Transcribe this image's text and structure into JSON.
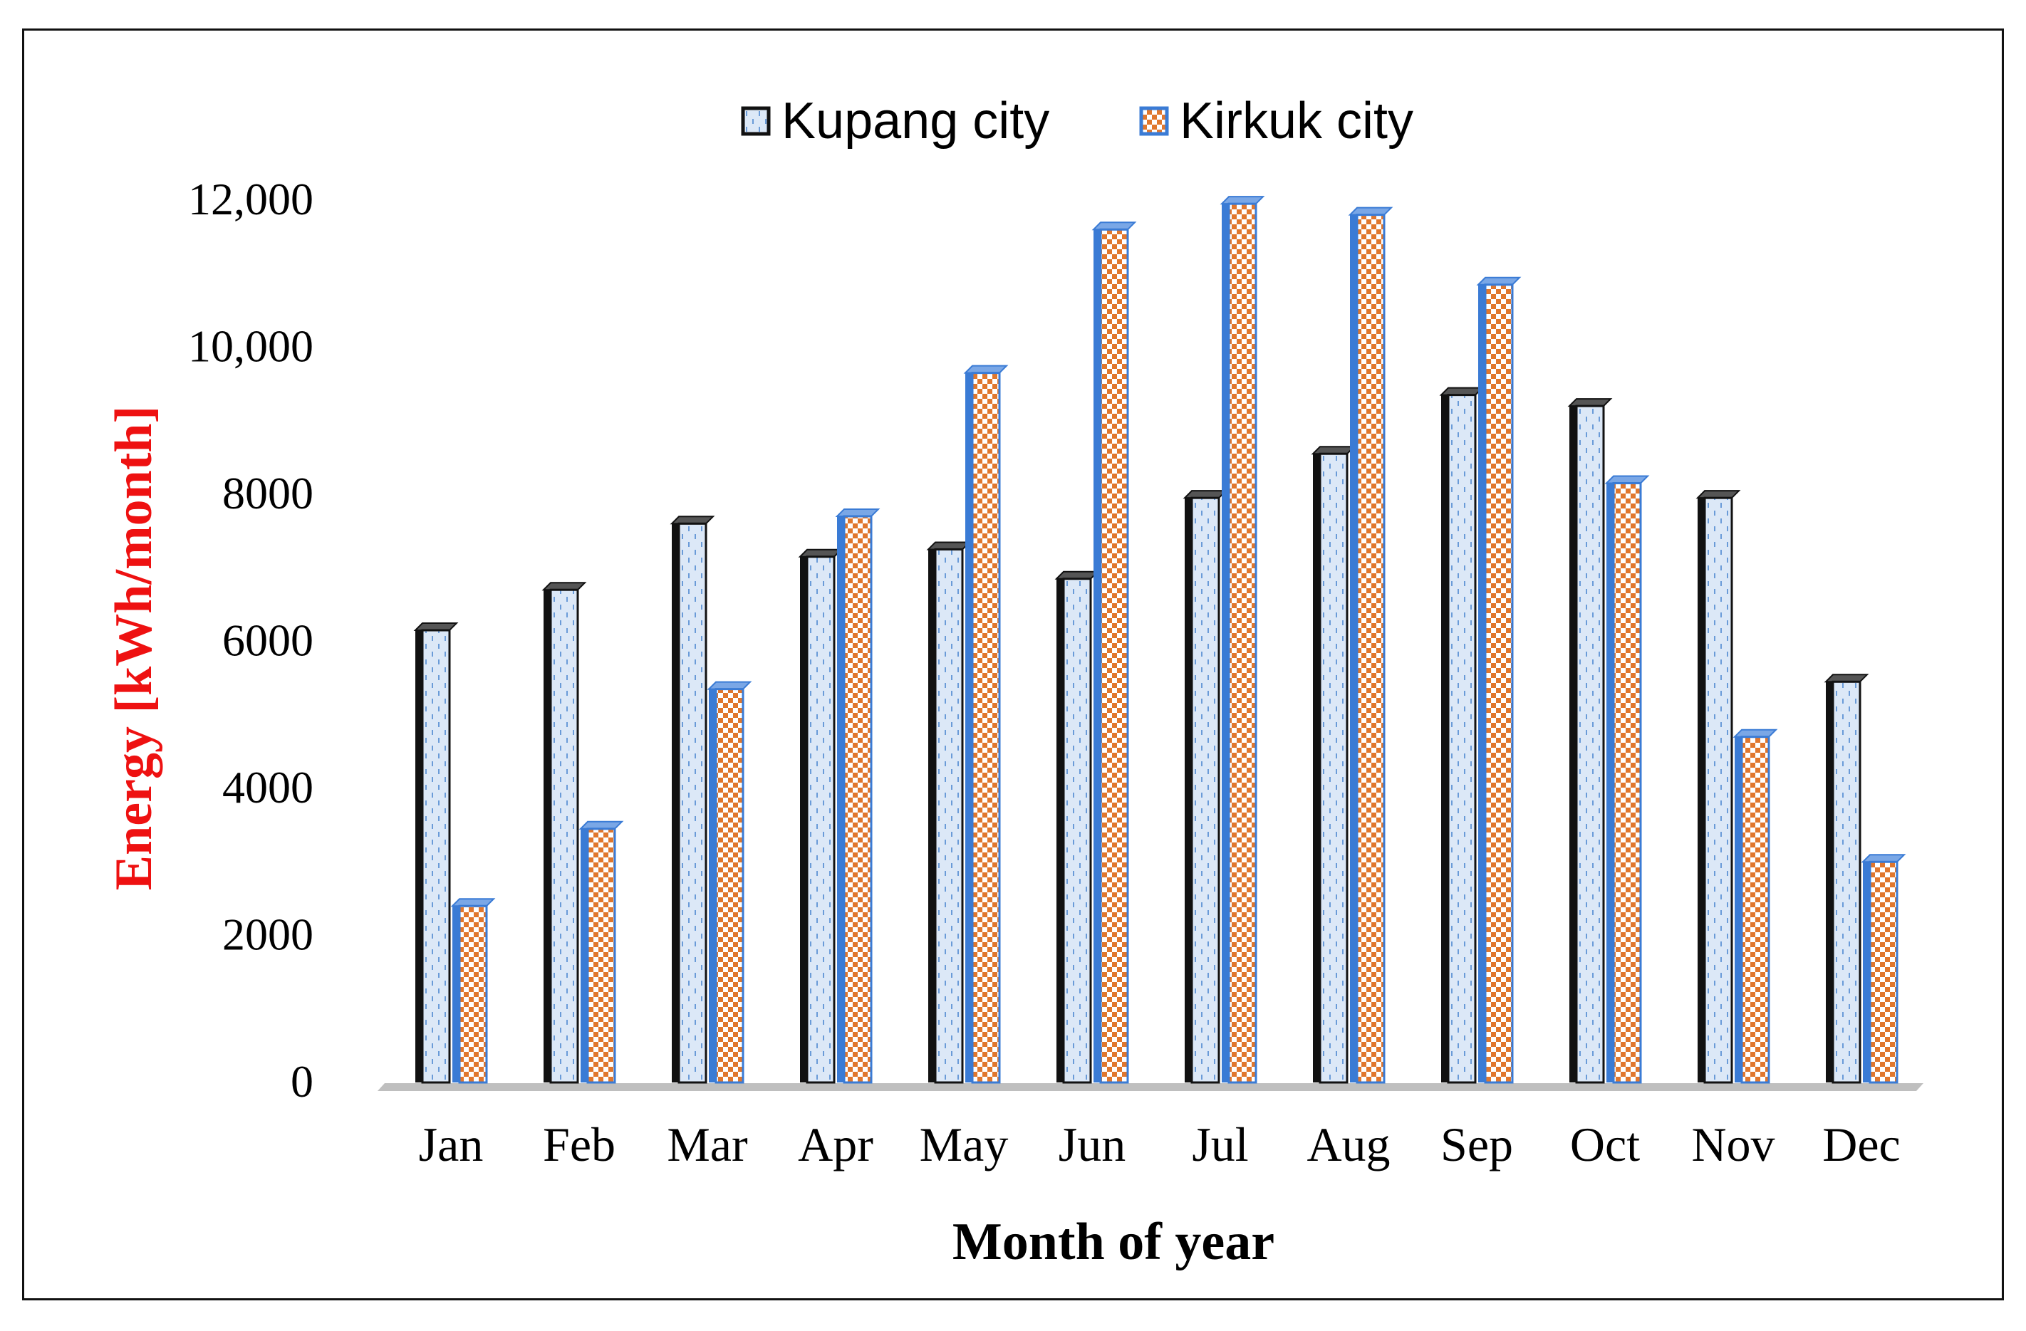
{
  "chart_data": {
    "type": "bar",
    "title": "",
    "xlabel": "Month of year",
    "ylabel": "Energy  [kWh/month]",
    "ylim": [
      0,
      12000
    ],
    "grid": false,
    "legend_position": "top-center",
    "categories": [
      "Jan",
      "Feb",
      "Mar",
      "Apr",
      "May",
      "Jun",
      "Jul",
      "Aug",
      "Sep",
      "Oct",
      "Nov",
      "Dec"
    ],
    "y_ticks": [
      {
        "value": 0,
        "label": "0"
      },
      {
        "value": 2000,
        "label": "2000"
      },
      {
        "value": 4000,
        "label": "4000"
      },
      {
        "value": 6000,
        "label": "6000"
      },
      {
        "value": 8000,
        "label": "8000"
      },
      {
        "value": 10000,
        "label": "10,000"
      },
      {
        "value": 12000,
        "label": "12,000"
      }
    ],
    "series": [
      {
        "name": "Kupang city",
        "values": [
          6150,
          6700,
          7600,
          7150,
          7250,
          6850,
          7950,
          8550,
          9350,
          9200,
          7950,
          5450
        ]
      },
      {
        "name": "Kirkuk city",
        "values": [
          2400,
          3450,
          5350,
          7700,
          9650,
          11600,
          11950,
          11800,
          10850,
          8150,
          4700,
          3000
        ]
      }
    ]
  },
  "colors": {
    "kupang_fill": "#dce8f7",
    "kupang_dots": "#6a9bd8",
    "kupang_edge": "#111111",
    "kirkuk_fill": "#ffffff",
    "kirkuk_checker": "#e0772e",
    "kirkuk_edge": "#3a7bd5",
    "floor": "#bfbfbf",
    "ylabel": "#ee1111"
  }
}
